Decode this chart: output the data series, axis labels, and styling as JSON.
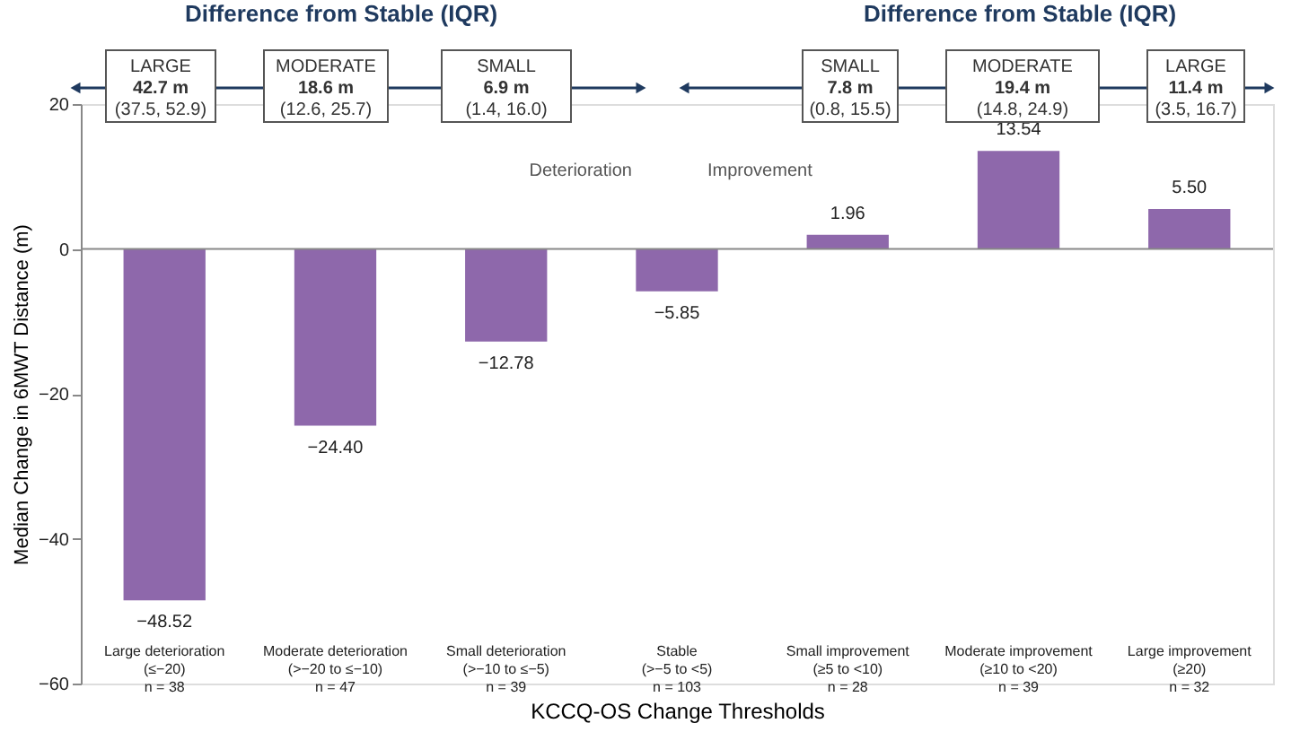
{
  "chart_data": {
    "type": "bar",
    "categories": [
      "Large deterioration\n(≤−20)\nn = 38",
      "Moderate deterioration\n(>−20 to ≤−10)\nn = 47",
      "Small deterioration\n(>−10 to ≤−5)\nn = 39",
      "Stable\n(>−5 to <5)\nn = 103",
      "Small improvement\n(≥5 to <10)\nn = 28",
      "Moderate improvement\n(≥10 to <20)\nn = 39",
      "Large improvement\n(≥20)\nn = 32"
    ],
    "values": [
      -48.52,
      -24.4,
      -12.78,
      -5.85,
      1.96,
      13.54,
      5.5
    ],
    "value_labels": [
      "−48.52",
      "−24.40",
      "−12.78",
      "−5.85",
      "1.96",
      "13.54",
      "5.50"
    ],
    "color": "#8e68ab",
    "xlabel": "KCCQ-OS Change Thresholds",
    "ylabel": "Median Change in 6MWT Distance (m)",
    "ylim": [
      -60,
      20
    ],
    "yticks": [
      -60,
      -40,
      -20,
      0,
      20
    ],
    "annotations": [
      "Difference from Stable (IQR)",
      "Difference from Stable (IQR)",
      "LARGE\n42.7 m\n(37.5, 52.9)",
      "MODERATE\n18.6 m\n(12.6, 25.7)",
      "SMALL\n6.9 m\n(1.4, 16.0)",
      "SMALL\n7.8 m\n(0.8, 15.5)",
      "MODERATE\n19.4 m\n(14.8, 24.9)",
      "LARGE\n11.4 m\n(3.5, 16.7)",
      "Deterioration",
      "Improvement"
    ]
  }
}
